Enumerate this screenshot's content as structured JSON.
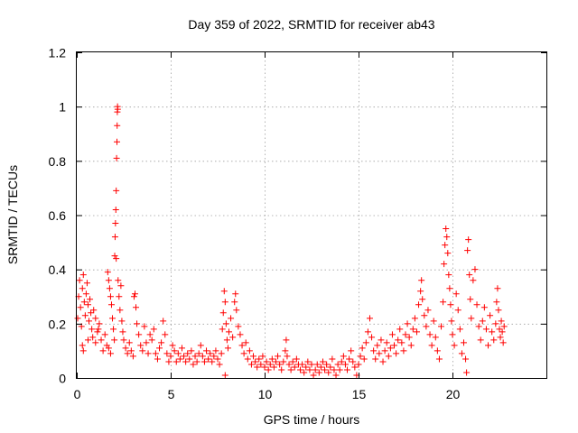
{
  "chart_data": {
    "type": "scatter",
    "title": "Day 359 of 2022, SRMTID for receiver ab43",
    "xlabel": "GPS time / hours",
    "ylabel": "SRMTID / TECUs",
    "xlim": [
      0,
      25
    ],
    "ylim": [
      0,
      1.2
    ],
    "x_ticks": [
      0,
      5,
      10,
      15,
      20
    ],
    "x_tick_labels": [
      "0",
      "5",
      "10",
      "15",
      "20"
    ],
    "y_ticks": [
      0,
      0.2,
      0.4,
      0.6,
      0.8,
      1.0,
      1.2
    ],
    "y_tick_labels": [
      "0",
      "0.2",
      "0.4",
      "0.6",
      "0.8",
      "1",
      "1.2"
    ],
    "grid": true,
    "marker": "plus",
    "color": "#ff0000",
    "series": [
      {
        "name": "SRMTID",
        "points": [
          [
            0.05,
            0.22
          ],
          [
            0.1,
            0.3
          ],
          [
            0.15,
            0.36
          ],
          [
            0.2,
            0.26
          ],
          [
            0.25,
            0.19
          ],
          [
            0.3,
            0.33
          ],
          [
            0.35,
            0.38
          ],
          [
            0.4,
            0.28
          ],
          [
            0.45,
            0.23
          ],
          [
            0.5,
            0.31
          ],
          [
            0.55,
            0.35
          ],
          [
            0.6,
            0.27
          ],
          [
            0.65,
            0.21
          ],
          [
            0.7,
            0.29
          ],
          [
            0.75,
            0.24
          ],
          [
            0.8,
            0.18
          ],
          [
            0.9,
            0.25
          ],
          [
            1.0,
            0.22
          ],
          [
            1.1,
            0.17
          ],
          [
            1.2,
            0.2
          ],
          [
            0.3,
            0.12
          ],
          [
            0.35,
            0.1
          ],
          [
            0.6,
            0.14
          ],
          [
            0.85,
            0.15
          ],
          [
            1.0,
            0.13
          ],
          [
            1.15,
            0.18
          ],
          [
            1.3,
            0.14
          ],
          [
            1.4,
            0.1
          ],
          [
            1.5,
            0.16
          ],
          [
            1.6,
            0.12
          ],
          [
            1.65,
            0.39
          ],
          [
            1.7,
            0.36
          ],
          [
            1.75,
            0.33
          ],
          [
            1.8,
            0.3
          ],
          [
            1.85,
            0.27
          ],
          [
            1.9,
            0.22
          ],
          [
            1.95,
            0.18
          ],
          [
            2.0,
            0.14
          ],
          [
            1.7,
            0.11
          ],
          [
            1.8,
            0.09
          ],
          [
            2.02,
            0.45
          ],
          [
            2.04,
            0.52
          ],
          [
            2.06,
            0.57
          ],
          [
            2.08,
            0.62
          ],
          [
            2.1,
            0.69
          ],
          [
            2.12,
            0.81
          ],
          [
            2.14,
            0.87
          ],
          [
            2.15,
            0.93
          ],
          [
            2.16,
            0.98
          ],
          [
            2.17,
            1.0
          ],
          [
            2.18,
            0.99
          ],
          [
            2.1,
            0.44
          ],
          [
            2.2,
            0.36
          ],
          [
            2.25,
            0.3
          ],
          [
            2.3,
            0.25
          ],
          [
            2.35,
            0.34
          ],
          [
            2.4,
            0.21
          ],
          [
            2.45,
            0.17
          ],
          [
            2.5,
            0.14
          ],
          [
            2.6,
            0.11
          ],
          [
            2.7,
            0.09
          ],
          [
            2.8,
            0.13
          ],
          [
            2.9,
            0.1
          ],
          [
            3.0,
            0.08
          ],
          [
            3.05,
            0.3
          ],
          [
            3.1,
            0.31
          ],
          [
            3.15,
            0.26
          ],
          [
            3.2,
            0.2
          ],
          [
            3.3,
            0.16
          ],
          [
            3.4,
            0.12
          ],
          [
            3.5,
            0.1
          ],
          [
            3.6,
            0.19
          ],
          [
            3.7,
            0.13
          ],
          [
            3.8,
            0.09
          ],
          [
            3.9,
            0.16
          ],
          [
            4.0,
            0.14
          ],
          [
            4.1,
            0.18
          ],
          [
            4.2,
            0.09
          ],
          [
            4.3,
            0.07
          ],
          [
            4.4,
            0.11
          ],
          [
            4.5,
            0.13
          ],
          [
            4.6,
            0.21
          ],
          [
            4.7,
            0.16
          ],
          [
            4.8,
            0.09
          ],
          [
            4.9,
            0.06
          ],
          [
            5.0,
            0.08
          ],
          [
            5.1,
            0.12
          ],
          [
            5.2,
            0.1
          ],
          [
            5.3,
            0.06
          ],
          [
            5.4,
            0.09
          ],
          [
            5.5,
            0.07
          ],
          [
            5.6,
            0.11
          ],
          [
            5.7,
            0.08
          ],
          [
            5.8,
            0.06
          ],
          [
            5.9,
            0.09
          ],
          [
            6.0,
            0.07
          ],
          [
            6.1,
            0.1
          ],
          [
            6.2,
            0.05
          ],
          [
            6.3,
            0.08
          ],
          [
            6.4,
            0.06
          ],
          [
            6.5,
            0.09
          ],
          [
            6.6,
            0.12
          ],
          [
            6.7,
            0.08
          ],
          [
            6.8,
            0.06
          ],
          [
            6.9,
            0.1
          ],
          [
            7.0,
            0.07
          ],
          [
            7.1,
            0.09
          ],
          [
            7.2,
            0.06
          ],
          [
            7.3,
            0.08
          ],
          [
            7.4,
            0.1
          ],
          [
            7.5,
            0.07
          ],
          [
            7.6,
            0.05
          ],
          [
            7.7,
            0.09
          ],
          [
            7.75,
            0.18
          ],
          [
            7.8,
            0.24
          ],
          [
            7.85,
            0.32
          ],
          [
            7.9,
            0.28
          ],
          [
            7.95,
            0.2
          ],
          [
            8.0,
            0.14
          ],
          [
            8.05,
            0.11
          ],
          [
            7.9,
            0.01
          ],
          [
            8.1,
            0.17
          ],
          [
            8.2,
            0.22
          ],
          [
            8.3,
            0.15
          ],
          [
            8.4,
            0.28
          ],
          [
            8.45,
            0.31
          ],
          [
            8.5,
            0.25
          ],
          [
            8.6,
            0.19
          ],
          [
            8.7,
            0.16
          ],
          [
            8.8,
            0.12
          ],
          [
            8.9,
            0.09
          ],
          [
            9.0,
            0.13
          ],
          [
            9.1,
            0.07
          ],
          [
            9.2,
            0.1
          ],
          [
            9.3,
            0.05
          ],
          [
            9.4,
            0.08
          ],
          [
            9.5,
            0.06
          ],
          [
            9.6,
            0.04
          ],
          [
            9.7,
            0.07
          ],
          [
            9.8,
            0.05
          ],
          [
            9.9,
            0.08
          ],
          [
            10.0,
            0.04
          ],
          [
            10.1,
            0.06
          ],
          [
            10.2,
            0.03
          ],
          [
            10.3,
            0.05
          ],
          [
            10.4,
            0.07
          ],
          [
            10.5,
            0.04
          ],
          [
            10.6,
            0.06
          ],
          [
            10.7,
            0.08
          ],
          [
            10.8,
            0.05
          ],
          [
            10.9,
            0.03
          ],
          [
            11.0,
            0.06
          ],
          [
            11.1,
            0.1
          ],
          [
            11.15,
            0.14
          ],
          [
            11.2,
            0.08
          ],
          [
            11.3,
            0.05
          ],
          [
            11.4,
            0.03
          ],
          [
            11.5,
            0.06
          ],
          [
            11.6,
            0.04
          ],
          [
            11.7,
            0.07
          ],
          [
            11.8,
            0.05
          ],
          [
            11.9,
            0.03
          ],
          [
            12.0,
            0.05
          ],
          [
            12.1,
            0.02
          ],
          [
            12.2,
            0.04
          ],
          [
            12.3,
            0.06
          ],
          [
            12.4,
            0.03
          ],
          [
            12.5,
            0.05
          ],
          [
            12.6,
            0.01
          ],
          [
            12.7,
            0.03
          ],
          [
            12.8,
            0.05
          ],
          [
            12.9,
            0.02
          ],
          [
            13.0,
            0.04
          ],
          [
            13.1,
            0.06
          ],
          [
            13.2,
            0.03
          ],
          [
            13.3,
            0.05
          ],
          [
            13.4,
            0.02
          ],
          [
            13.5,
            0.04
          ],
          [
            13.6,
            0.07
          ],
          [
            13.7,
            0.03
          ],
          [
            13.8,
            0.01
          ],
          [
            13.9,
            0.05
          ],
          [
            14.0,
            0.03
          ],
          [
            14.1,
            0.06
          ],
          [
            14.2,
            0.08
          ],
          [
            14.3,
            0.05
          ],
          [
            14.4,
            0.03
          ],
          [
            14.5,
            0.07
          ],
          [
            14.6,
            0.1
          ],
          [
            14.7,
            0.06
          ],
          [
            14.8,
            0.04
          ],
          [
            14.9,
            0.01
          ],
          [
            15.0,
            0.05
          ],
          [
            15.1,
            0.08
          ],
          [
            15.2,
            0.11
          ],
          [
            15.3,
            0.07
          ],
          [
            15.4,
            0.13
          ],
          [
            15.5,
            0.17
          ],
          [
            15.6,
            0.22
          ],
          [
            15.7,
            0.15
          ],
          [
            15.8,
            0.1
          ],
          [
            15.9,
            0.07
          ],
          [
            16.0,
            0.12
          ],
          [
            16.1,
            0.09
          ],
          [
            16.2,
            0.14
          ],
          [
            16.3,
            0.06
          ],
          [
            16.4,
            0.1
          ],
          [
            16.5,
            0.13
          ],
          [
            16.6,
            0.08
          ],
          [
            16.7,
            0.11
          ],
          [
            16.8,
            0.16
          ],
          [
            16.9,
            0.12
          ],
          [
            17.0,
            0.09
          ],
          [
            17.1,
            0.14
          ],
          [
            17.2,
            0.18
          ],
          [
            17.3,
            0.13
          ],
          [
            17.4,
            0.1
          ],
          [
            17.5,
            0.16
          ],
          [
            17.6,
            0.2
          ],
          [
            17.7,
            0.15
          ],
          [
            17.8,
            0.12
          ],
          [
            17.9,
            0.18
          ],
          [
            18.0,
            0.22
          ],
          [
            18.1,
            0.17
          ],
          [
            18.2,
            0.27
          ],
          [
            18.3,
            0.32
          ],
          [
            18.35,
            0.36
          ],
          [
            18.4,
            0.29
          ],
          [
            18.5,
            0.23
          ],
          [
            18.6,
            0.19
          ],
          [
            18.7,
            0.25
          ],
          [
            18.8,
            0.16
          ],
          [
            18.9,
            0.12
          ],
          [
            19.0,
            0.21
          ],
          [
            19.1,
            0.15
          ],
          [
            19.2,
            0.1
          ],
          [
            19.3,
            0.07
          ],
          [
            19.4,
            0.19
          ],
          [
            19.5,
            0.28
          ],
          [
            19.55,
            0.42
          ],
          [
            19.6,
            0.49
          ],
          [
            19.65,
            0.55
          ],
          [
            19.7,
            0.52
          ],
          [
            19.75,
            0.46
          ],
          [
            19.8,
            0.38
          ],
          [
            19.85,
            0.33
          ],
          [
            19.9,
            0.27
          ],
          [
            19.95,
            0.21
          ],
          [
            20.0,
            0.16
          ],
          [
            20.1,
            0.12
          ],
          [
            20.2,
            0.31
          ],
          [
            20.3,
            0.25
          ],
          [
            20.4,
            0.18
          ],
          [
            20.5,
            0.09
          ],
          [
            20.6,
            0.13
          ],
          [
            20.7,
            0.07
          ],
          [
            20.75,
            0.02
          ],
          [
            20.8,
            0.47
          ],
          [
            20.85,
            0.51
          ],
          [
            20.9,
            0.38
          ],
          [
            20.95,
            0.29
          ],
          [
            21.0,
            0.22
          ],
          [
            21.1,
            0.36
          ],
          [
            21.2,
            0.4
          ],
          [
            21.3,
            0.27
          ],
          [
            21.4,
            0.19
          ],
          [
            21.5,
            0.14
          ],
          [
            21.6,
            0.21
          ],
          [
            21.7,
            0.26
          ],
          [
            21.8,
            0.18
          ],
          [
            21.9,
            0.12
          ],
          [
            22.0,
            0.23
          ],
          [
            22.1,
            0.17
          ],
          [
            22.2,
            0.14
          ],
          [
            22.3,
            0.2
          ],
          [
            22.35,
            0.28
          ],
          [
            22.4,
            0.33
          ],
          [
            22.45,
            0.25
          ],
          [
            22.5,
            0.18
          ],
          [
            22.55,
            0.15
          ],
          [
            22.6,
            0.21
          ],
          [
            22.65,
            0.17
          ],
          [
            22.7,
            0.13
          ],
          [
            22.75,
            0.19
          ]
        ]
      }
    ]
  }
}
